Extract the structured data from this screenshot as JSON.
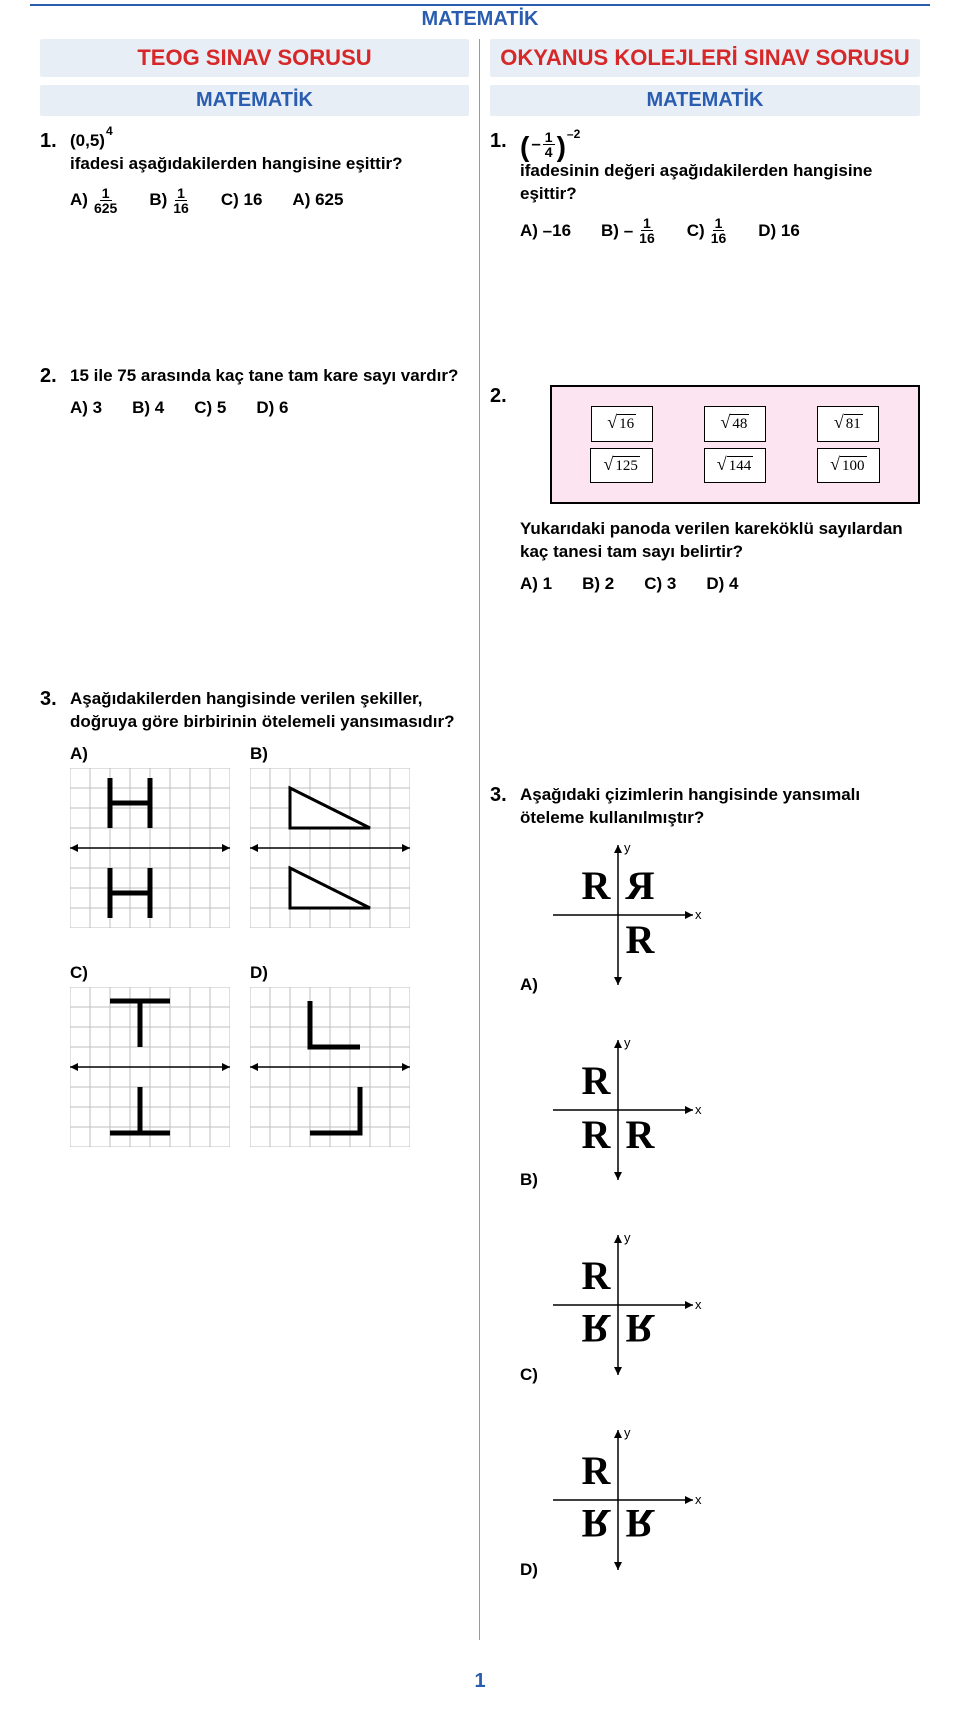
{
  "header": {
    "subject": "MATEMATİK",
    "left_title": "TEOG SINAV SORUSU",
    "right_title": "OKYANUS KOLEJLERİ SINAV SORUSU",
    "subtitle": "MATEMATİK"
  },
  "left": {
    "q1": {
      "num": "1.",
      "expr_base": "(0,5)",
      "expr_exp": "4",
      "text": "ifadesi aşağıdakilerden hangisine eşittir?",
      "opts": {
        "a_label": "A)",
        "a_num": "1",
        "a_den": "625",
        "b_label": "B)",
        "b_num": "1",
        "b_den": "16",
        "c_label": "C) 16",
        "d_label": "A) 625"
      }
    },
    "q2": {
      "num": "2.",
      "text": "15 ile 75 arasında kaç tane tam kare sayı vardır?",
      "opts": {
        "a": "A) 3",
        "b": "B) 4",
        "c": "C) 5",
        "d": "D) 6"
      }
    },
    "q3": {
      "num": "3.",
      "text": "Aşağıdakilerden hangisinde verilen şekiller, doğruya göre birbirinin ötelemeli yansımasıdır?",
      "labels": {
        "a": "A)",
        "b": "B)",
        "c": "C)",
        "d": "D)"
      },
      "grid": {
        "cols": 8,
        "rows": 8,
        "cell": 20,
        "stroke": "#bfbfbf",
        "shape_stroke": "#000000",
        "shape_width": 5,
        "axis_stroke": "#000000"
      }
    }
  },
  "right": {
    "q1": {
      "num": "1.",
      "expr_minus": "–",
      "expr_num": "1",
      "expr_den": "4",
      "expr_exp": "–2",
      "text": "ifadesinin değeri aşağıdakilerden hangisine eşittir?",
      "opts": {
        "a_label": "A) –16",
        "b_label": "B) –",
        "b_num": "1",
        "b_den": "16",
        "c_label": "C)",
        "c_num": "1",
        "c_den": "16",
        "d_label": "D) 16"
      }
    },
    "q2": {
      "num": "2.",
      "pano": [
        [
          "16",
          "48",
          "81"
        ],
        [
          "125",
          "144",
          "100"
        ]
      ],
      "text": "Yukarıdaki panoda verilen kareköklü sayılardan kaç tanesi tam sayı belirtir?",
      "opts": {
        "a": "A) 1",
        "b": "B) 2",
        "c": "C) 3",
        "d": "D) 4"
      },
      "pano_bg": "#fce4f1"
    },
    "q3": {
      "num": "3.",
      "text": "Aşağıdaki çizimlerin hangisinde yansımalı öteleme kullanılmıştır?",
      "labels": {
        "a": "A)",
        "b": "B)",
        "c": "C)",
        "d": "D)"
      },
      "axes": {
        "size": 150,
        "stroke": "#000000",
        "arrow": 7,
        "x_label": "x",
        "y_label": "y"
      }
    }
  },
  "page_number": "1"
}
